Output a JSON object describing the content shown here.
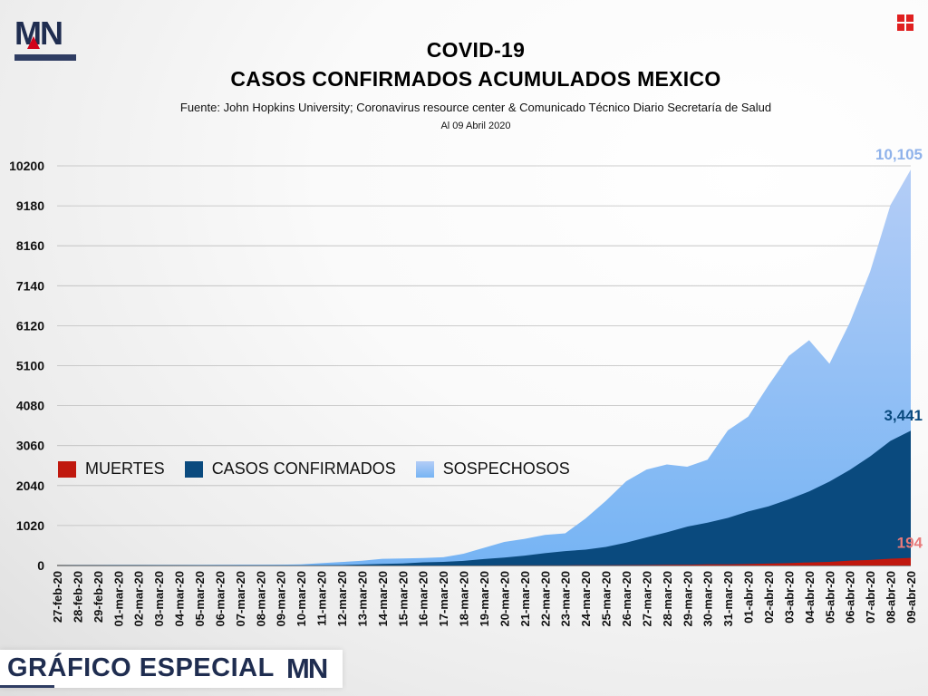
{
  "header": {
    "logo_text": "MN",
    "title_line1": "COVID-19",
    "title_line2": "CASOS CONFIRMADOS ACUMULADOS MEXICO",
    "source": "Fuente: John Hopkins University; Coronavirus resource center & Comunicado Técnico Diario Secretaría de Salud",
    "date": "Al 09 Abril 2020"
  },
  "footer": {
    "label": "GRÁFICO ESPECIAL",
    "logo_text": "MN"
  },
  "legend": {
    "deaths": "MUERTES",
    "confirmed": "CASOS CONFIRMADOS",
    "suspected": "SOSPECHOSOS"
  },
  "colors": {
    "deaths": "#c0180e",
    "confirmed": "#0a4a7e",
    "suspected_top": "#a9c6f5",
    "suspected_bottom": "#7fb6f4",
    "deaths_label": "#e87a7a",
    "confirmed_label": "#0a4a7e",
    "suspected_label": "#8fb2ea",
    "grid": "#bdbdbd"
  },
  "chart_data": {
    "type": "area",
    "x": [
      "27-feb-20",
      "28-feb-20",
      "29-feb-20",
      "01-mar-20",
      "02-mar-20",
      "03-mar-20",
      "04-mar-20",
      "05-mar-20",
      "06-mar-20",
      "07-mar-20",
      "08-mar-20",
      "09-mar-20",
      "10-mar-20",
      "11-mar-20",
      "12-mar-20",
      "13-mar-20",
      "14-mar-20",
      "15-mar-20",
      "16-mar-20",
      "17-mar-20",
      "18-mar-20",
      "19-mar-20",
      "20-mar-20",
      "21-mar-20",
      "22-mar-20",
      "23-mar-20",
      "24-mar-20",
      "25-mar-20",
      "26-mar-20",
      "27-mar-20",
      "28-mar-20",
      "29-mar-20",
      "30-mar-20",
      "31-mar-20",
      "01-abr-20",
      "02-abr-20",
      "03-abr-20",
      "04-abr-20",
      "05-abr-20",
      "06-abr-20",
      "07-abr-20",
      "08-abr-20",
      "09-abr-20"
    ],
    "yticks": [
      0,
      1020,
      2040,
      3060,
      4080,
      5100,
      6120,
      7140,
      8160,
      9180,
      10200
    ],
    "ylim": [
      0,
      10200
    ],
    "stacked": false,
    "series": [
      {
        "name": "SOSPECHOSOS",
        "values": [
          1,
          2,
          4,
          5,
          7,
          8,
          10,
          12,
          14,
          16,
          18,
          20,
          30,
          60,
          90,
          120,
          170,
          180,
          190,
          210,
          300,
          450,
          600,
          680,
          780,
          820,
          1200,
          1650,
          2150,
          2450,
          2580,
          2520,
          2700,
          3450,
          3800,
          4600,
          5350,
          5750,
          5150,
          6200,
          7500,
          9200,
          10105
        ]
      },
      {
        "name": "CASOS CONFIRMADOS",
        "values": [
          1,
          2,
          4,
          5,
          5,
          5,
          5,
          5,
          6,
          6,
          7,
          7,
          7,
          8,
          12,
          26,
          41,
          53,
          82,
          93,
          118,
          164,
          203,
          251,
          316,
          367,
          405,
          475,
          585,
          717,
          848,
          993,
          1094,
          1215,
          1378,
          1510,
          1688,
          1890,
          2143,
          2439,
          2785,
          3181,
          3441
        ]
      },
      {
        "name": "MUERTES",
        "values": [
          0,
          0,
          0,
          0,
          0,
          0,
          0,
          0,
          0,
          0,
          0,
          0,
          0,
          0,
          0,
          0,
          0,
          0,
          0,
          0,
          0,
          1,
          2,
          2,
          2,
          4,
          5,
          6,
          8,
          12,
          16,
          20,
          28,
          29,
          37,
          50,
          60,
          79,
          94,
          125,
          141,
          174,
          194
        ]
      }
    ],
    "annotations": [
      {
        "series": "SOSPECHOSOS",
        "text": "10,105"
      },
      {
        "series": "CASOS CONFIRMADOS",
        "text": "3,441"
      },
      {
        "series": "MUERTES",
        "text": "194"
      }
    ],
    "legend_position": "middle-left",
    "grid": true
  }
}
